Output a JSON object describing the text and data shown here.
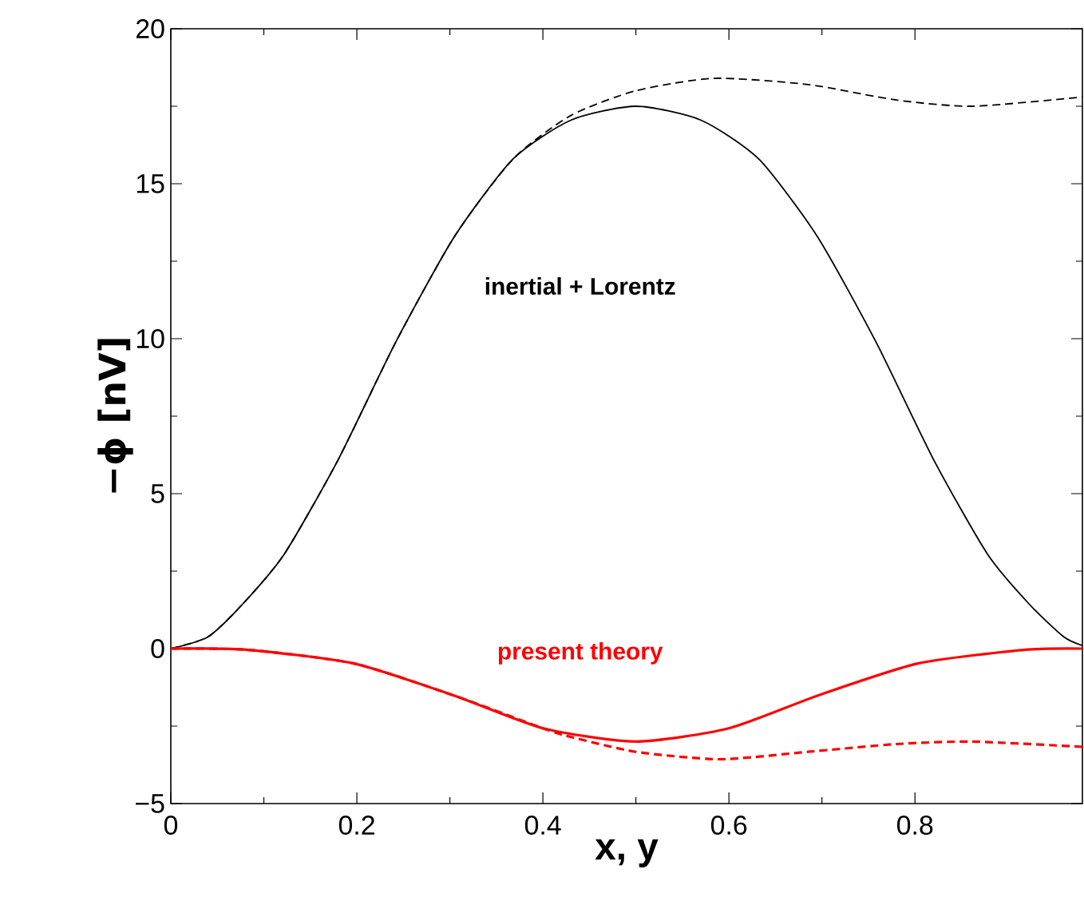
{
  "chart_data": {
    "type": "line",
    "xlabel": "x, y",
    "ylabel": "−ϕ [nV]",
    "xlim": [
      0,
      0.98
    ],
    "ylim": [
      -5,
      20
    ],
    "xticks": [
      0,
      0.2,
      0.4,
      0.6,
      0.8
    ],
    "yticks": [
      {
        "value": -5,
        "label": "−5"
      },
      0,
      5,
      10,
      15,
      20
    ],
    "grid": false,
    "marker": "none",
    "annotations": [
      "inertial + Lorentz",
      "present theory"
    ],
    "series": [
      {
        "color": "#000000",
        "line_style": "solid",
        "x": [
          0,
          0.04,
          0.077,
          0.122,
          0.18,
          0.242,
          0.305,
          0.368,
          0.43,
          0.5,
          0.57,
          0.632,
          0.695,
          0.758,
          0.82,
          0.878,
          0.923,
          0.96,
          0.98
        ],
        "values": [
          0,
          0.38,
          1.43,
          3.05,
          6.1,
          9.9,
          13.3,
          15.8,
          17.05,
          17.5,
          17.05,
          15.8,
          13.3,
          9.9,
          6.1,
          3.05,
          1.43,
          0.38,
          0.1
        ]
      },
      {
        "color": "#000000",
        "line_style": "dashed",
        "x": [
          0,
          0.04,
          0.077,
          0.122,
          0.18,
          0.242,
          0.305,
          0.368,
          0.43,
          0.5,
          0.584,
          0.685,
          0.78,
          0.862,
          0.98
        ],
        "values": [
          0,
          0.38,
          1.43,
          3.05,
          6.1,
          9.9,
          13.3,
          15.8,
          17.2,
          18.0,
          18.4,
          18.2,
          17.7,
          17.5,
          17.8
        ]
      },
      {
        "color": "#ff0000",
        "line_style": "solid",
        "x": [
          0,
          0.083,
          0.197,
          0.305,
          0.4,
          0.5,
          0.6,
          0.695,
          0.803,
          0.917,
          0.98
        ],
        "values": [
          0,
          -0.04,
          -0.48,
          -1.52,
          -2.57,
          -3.0,
          -2.57,
          -1.52,
          -0.48,
          -0.04,
          0
        ]
      },
      {
        "color": "#ff0000",
        "line_style": "dashed",
        "x": [
          0,
          0.083,
          0.197,
          0.305,
          0.4,
          0.43,
          0.5,
          0.59,
          0.685,
          0.78,
          0.862,
          0.98
        ],
        "values": [
          0,
          -0.04,
          -0.48,
          -1.52,
          -2.57,
          -2.85,
          -3.33,
          -3.57,
          -3.33,
          -3.08,
          -3.0,
          -3.17
        ]
      }
    ]
  }
}
